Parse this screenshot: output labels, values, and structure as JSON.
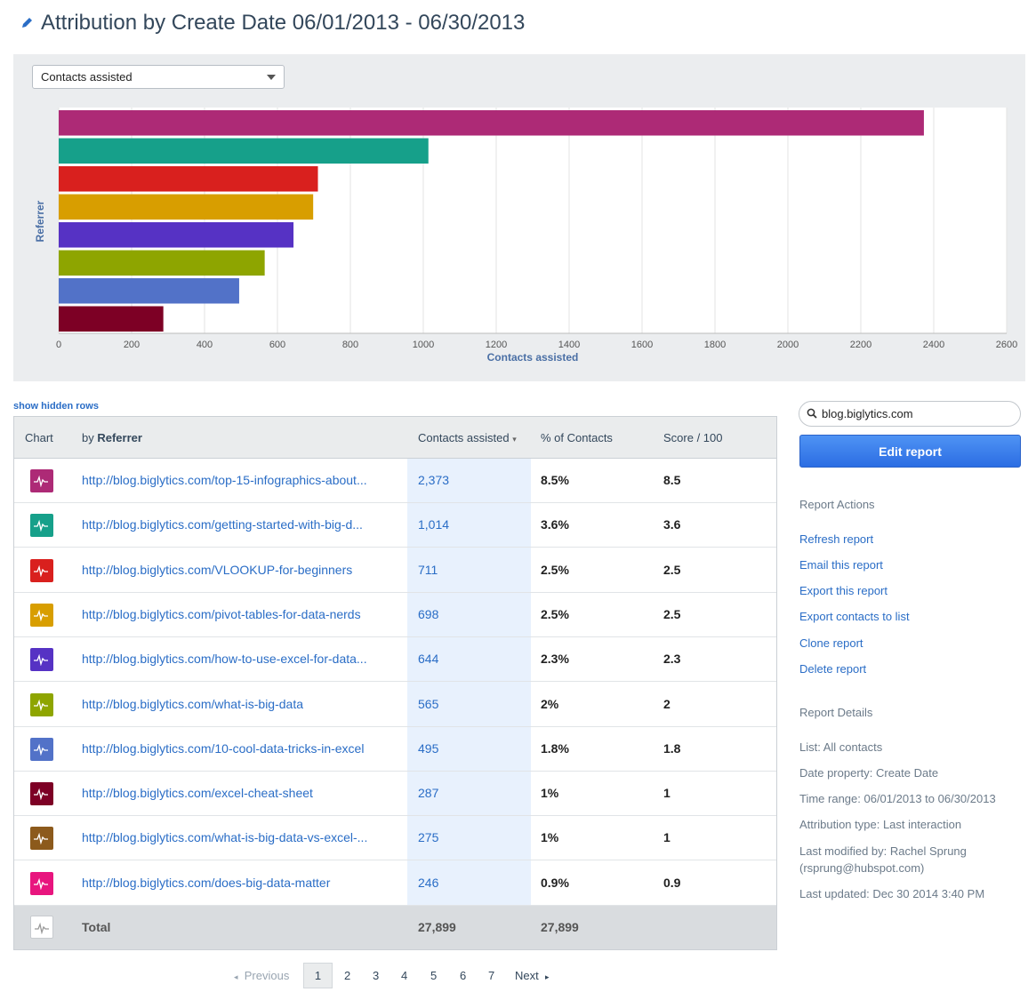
{
  "title": "Attribution by Create Date 06/01/2013 - 06/30/2013",
  "metric_select": "Contacts assisted",
  "chart_data": {
    "type": "bar",
    "orientation": "horizontal",
    "xlabel": "Contacts assisted",
    "ylabel": "Referrer",
    "xlim": [
      0,
      2600
    ],
    "xticks": [
      "0",
      "200",
      "400",
      "600",
      "800",
      "1000",
      "1200",
      "1400",
      "1600",
      "1800",
      "2000",
      "2200",
      "2400",
      "2600"
    ],
    "grid": true,
    "values": [
      2373,
      1014,
      711,
      698,
      644,
      565,
      495,
      287
    ],
    "colors": [
      "#ad2a76",
      "#16a08a",
      "#d9201e",
      "#d89e00",
      "#5632c4",
      "#8ea500",
      "#5272c8",
      "#7d0025"
    ]
  },
  "show_hidden_rows": "show hidden rows",
  "table": {
    "headers": {
      "chart": "Chart",
      "by": "by ",
      "by_bold": "Referrer",
      "contacts": "Contacts assisted",
      "percent": "% of Contacts",
      "score": "Score / 100"
    },
    "rows": [
      {
        "url": "http://blog.biglytics.com/top-15-infographics-about...",
        "value": "2,373",
        "percent": "8.5%",
        "score": "8.5",
        "color": "#ad2a76"
      },
      {
        "url": "http://blog.biglytics.com/getting-started-with-big-d...",
        "value": "1,014",
        "percent": "3.6%",
        "score": "3.6",
        "color": "#16a08a"
      },
      {
        "url": "http://blog.biglytics.com/VLOOKUP-for-beginners",
        "value": "711",
        "percent": "2.5%",
        "score": "2.5",
        "color": "#d9201e"
      },
      {
        "url": "http://blog.biglytics.com/pivot-tables-for-data-nerds",
        "value": "698",
        "percent": "2.5%",
        "score": "2.5",
        "color": "#d89e00"
      },
      {
        "url": "http://blog.biglytics.com/how-to-use-excel-for-data...",
        "value": "644",
        "percent": "2.3%",
        "score": "2.3",
        "color": "#5632c4"
      },
      {
        "url": "http://blog.biglytics.com/what-is-big-data",
        "value": "565",
        "percent": "2%",
        "score": "2",
        "color": "#8ea500"
      },
      {
        "url": "http://blog.biglytics.com/10-cool-data-tricks-in-excel",
        "value": "495",
        "percent": "1.8%",
        "score": "1.8",
        "color": "#5272c8"
      },
      {
        "url": "http://blog.biglytics.com/excel-cheat-sheet",
        "value": "287",
        "percent": "1%",
        "score": "1",
        "color": "#7d0025"
      },
      {
        "url": "http://blog.biglytics.com/what-is-big-data-vs-excel-...",
        "value": "275",
        "percent": "1%",
        "score": "1",
        "color": "#8c5a1c"
      },
      {
        "url": "http://blog.biglytics.com/does-big-data-matter",
        "value": "246",
        "percent": "0.9%",
        "score": "0.9",
        "color": "#e8157e"
      }
    ],
    "total": {
      "label": "Total",
      "value": "27,899",
      "percent": "27,899"
    }
  },
  "pagination": {
    "previous": "Previous",
    "pages": [
      "1",
      "2",
      "3",
      "4",
      "5",
      "6",
      "7"
    ],
    "current": "1",
    "next": "Next"
  },
  "sidebar": {
    "search_value": "blog.biglytics.com",
    "edit_button": "Edit report",
    "actions_heading": "Report Actions",
    "actions": [
      "Refresh report",
      "Email this report",
      "Export this report",
      "Export contacts to list",
      "Clone report",
      "Delete report"
    ],
    "details_heading": "Report Details",
    "details": [
      "List: All contacts",
      "Date property: Create Date",
      "Time range: 06/01/2013 to 06/30/2013",
      "Attribution type: Last interaction",
      "Last modified by: Rachel Sprung (rsprung@hubspot.com)",
      "Last updated: Dec 30 2014 3:40 PM"
    ]
  }
}
